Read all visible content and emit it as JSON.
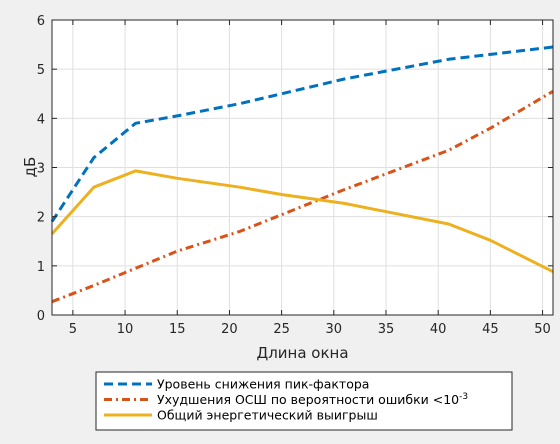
{
  "chart_data": {
    "type": "line",
    "title": "",
    "xlabel": "Длина окна",
    "ylabel": "дБ",
    "xlim": [
      3,
      51
    ],
    "ylim": [
      0,
      6
    ],
    "xticks": [
      5,
      10,
      15,
      20,
      25,
      30,
      35,
      40,
      45,
      50
    ],
    "yticks": [
      0,
      1,
      2,
      3,
      4,
      5,
      6
    ],
    "grid": true,
    "legend_position": "bottom-center, outside",
    "legend_suffix": "-3",
    "series": [
      {
        "name": "Уровень снижения пик-фактора",
        "color": "#0072BD",
        "style": "dashed",
        "x": [
          3,
          7,
          11,
          15,
          21,
          31,
          41,
          51
        ],
        "y": [
          1.9,
          3.2,
          3.9,
          4.05,
          4.3,
          4.8,
          5.2,
          5.45
        ]
      },
      {
        "name": "Ухудшения ОСШ по вероятности ошибки <10",
        "color": "#D95319",
        "style": "dashdot",
        "x": [
          3,
          7,
          11,
          15,
          21,
          31,
          41,
          45,
          51
        ],
        "y": [
          0.27,
          0.6,
          0.95,
          1.3,
          1.7,
          2.55,
          3.35,
          3.8,
          4.55
        ]
      },
      {
        "name": "Общий энергетический выигрыш",
        "color": "#EDB120",
        "style": "solid",
        "x": [
          3,
          7,
          11,
          15,
          21,
          25,
          31,
          41,
          45,
          51
        ],
        "y": [
          1.65,
          2.6,
          2.93,
          2.78,
          2.6,
          2.45,
          2.27,
          1.85,
          1.52,
          0.88
        ]
      }
    ]
  }
}
